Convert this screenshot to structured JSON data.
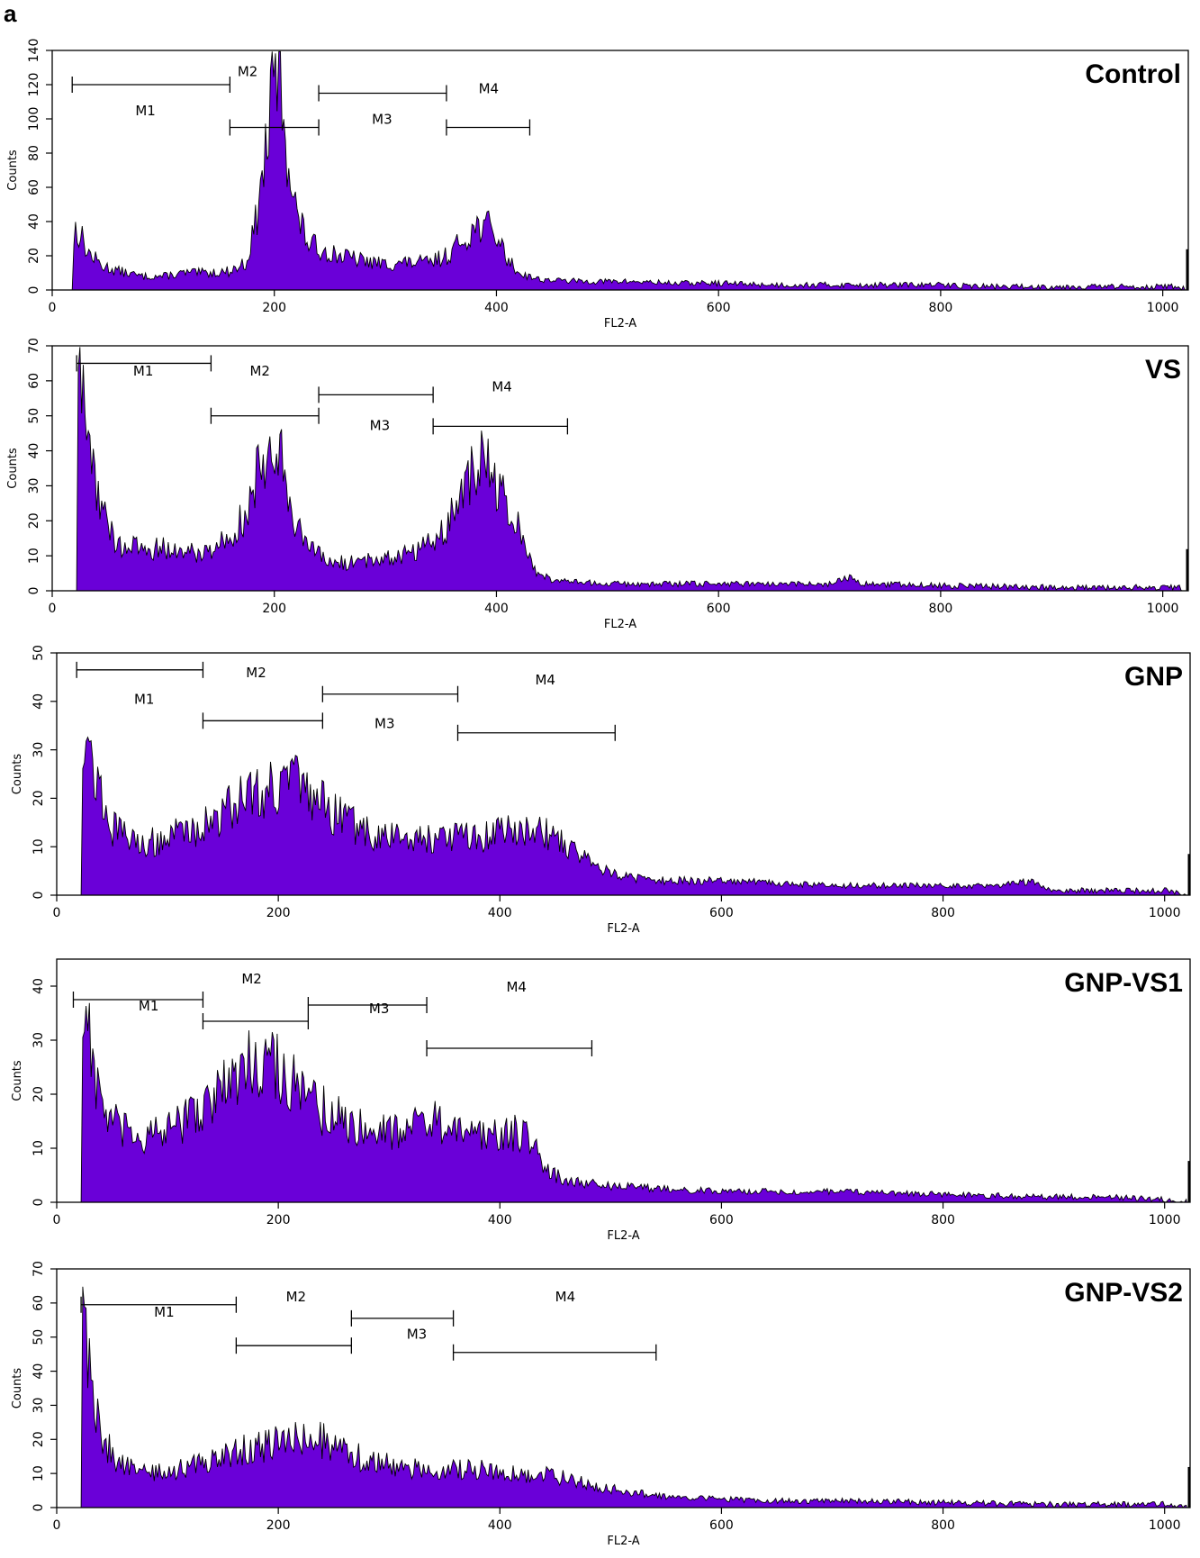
{
  "figure": {
    "panel_label": "a",
    "fill_color": "#6a00d8",
    "stroke_color": "#000000"
  },
  "chart_data": [
    {
      "type": "area",
      "title": "Control",
      "xlabel": "FL2-A",
      "ylabel": "Counts",
      "xlim": [
        0,
        1023
      ],
      "ylim": [
        0,
        140
      ],
      "xticks": [
        0,
        200,
        400,
        600,
        800,
        1000
      ],
      "yticks": [
        0,
        20,
        40,
        60,
        80,
        100,
        120,
        140
      ],
      "markers": [
        {
          "name": "M1",
          "start": 18,
          "end": 160,
          "level": 120,
          "label_x": 84,
          "label_y": 102
        },
        {
          "name": "M2",
          "start": 160,
          "end": 240,
          "level": 95,
          "label_x": 176,
          "label_y": 125
        },
        {
          "name": "M3",
          "start": 240,
          "end": 355,
          "level": 115,
          "label_x": 297,
          "label_y": 97
        },
        {
          "name": "M4",
          "start": 355,
          "end": 430,
          "level": 95,
          "label_x": 393,
          "label_y": 115
        }
      ],
      "profile": [
        [
          18,
          0
        ],
        [
          20,
          36
        ],
        [
          25,
          33
        ],
        [
          32,
          22
        ],
        [
          45,
          14
        ],
        [
          60,
          11
        ],
        [
          80,
          8
        ],
        [
          100,
          8
        ],
        [
          120,
          10
        ],
        [
          140,
          10
        ],
        [
          160,
          11
        ],
        [
          175,
          16
        ],
        [
          185,
          45
        ],
        [
          195,
          95
        ],
        [
          200,
          122
        ],
        [
          203,
          132
        ],
        [
          206,
          118
        ],
        [
          212,
          80
        ],
        [
          220,
          45
        ],
        [
          230,
          28
        ],
        [
          240,
          24
        ],
        [
          260,
          20
        ],
        [
          280,
          17
        ],
        [
          300,
          15
        ],
        [
          320,
          16
        ],
        [
          340,
          16
        ],
        [
          355,
          20
        ],
        [
          365,
          26
        ],
        [
          375,
          33
        ],
        [
          385,
          38
        ],
        [
          392,
          37
        ],
        [
          400,
          32
        ],
        [
          410,
          18
        ],
        [
          420,
          10
        ],
        [
          440,
          6
        ],
        [
          480,
          5
        ],
        [
          520,
          5
        ],
        [
          560,
          4
        ],
        [
          600,
          4
        ],
        [
          650,
          3
        ],
        [
          700,
          3
        ],
        [
          750,
          3
        ],
        [
          800,
          3
        ],
        [
          850,
          2
        ],
        [
          900,
          2
        ],
        [
          950,
          2
        ],
        [
          1000,
          2
        ],
        [
          1015,
          2
        ],
        [
          1020,
          0
        ]
      ]
    },
    {
      "type": "area",
      "title": "VS",
      "xlabel": "FL2-A",
      "ylabel": "Counts",
      "xlim": [
        0,
        1023
      ],
      "ylim": [
        0,
        70
      ],
      "xticks": [
        0,
        200,
        400,
        600,
        800,
        1000
      ],
      "yticks": [
        0,
        10,
        20,
        30,
        40,
        50,
        60,
        70
      ],
      "markers": [
        {
          "name": "M1",
          "start": 22,
          "end": 143,
          "level": 65,
          "label_x": 82,
          "label_y": 61.5
        },
        {
          "name": "M2",
          "start": 143,
          "end": 240,
          "level": 50,
          "label_x": 187,
          "label_y": 61.5
        },
        {
          "name": "M3",
          "start": 240,
          "end": 343,
          "level": 56,
          "label_x": 295,
          "label_y": 46
        },
        {
          "name": "M4",
          "start": 343,
          "end": 464,
          "level": 47,
          "label_x": 405,
          "label_y": 57
        }
      ],
      "profile": [
        [
          22,
          0
        ],
        [
          23,
          56
        ],
        [
          27,
          58
        ],
        [
          32,
          45
        ],
        [
          40,
          30
        ],
        [
          50,
          18
        ],
        [
          60,
          13
        ],
        [
          80,
          12
        ],
        [
          100,
          12
        ],
        [
          120,
          11
        ],
        [
          140,
          11
        ],
        [
          160,
          16
        ],
        [
          175,
          22
        ],
        [
          185,
          33
        ],
        [
          195,
          43
        ],
        [
          200,
          46
        ],
        [
          205,
          40
        ],
        [
          215,
          24
        ],
        [
          230,
          12
        ],
        [
          250,
          8
        ],
        [
          270,
          8
        ],
        [
          290,
          9
        ],
        [
          310,
          10
        ],
        [
          330,
          12
        ],
        [
          350,
          16
        ],
        [
          365,
          24
        ],
        [
          375,
          32
        ],
        [
          385,
          36
        ],
        [
          392,
          35
        ],
        [
          400,
          30
        ],
        [
          410,
          24
        ],
        [
          425,
          14
        ],
        [
          435,
          6
        ],
        [
          450,
          3
        ],
        [
          500,
          2
        ],
        [
          600,
          2
        ],
        [
          700,
          2
        ],
        [
          715,
          4
        ],
        [
          730,
          2
        ],
        [
          800,
          1.5
        ],
        [
          900,
          1
        ],
        [
          1000,
          1
        ],
        [
          1015,
          1
        ],
        [
          1020,
          0
        ]
      ]
    },
    {
      "type": "area",
      "title": "GNP",
      "xlabel": "FL2-A",
      "ylabel": "Counts",
      "xlim": [
        0,
        1023
      ],
      "ylim": [
        0,
        50
      ],
      "xticks": [
        0,
        200,
        400,
        600,
        800,
        1000
      ],
      "yticks": [
        0,
        10,
        20,
        30,
        40,
        50
      ],
      "markers": [
        {
          "name": "M1",
          "start": 18,
          "end": 132,
          "level": 46.5,
          "label_x": 79,
          "label_y": 39.5
        },
        {
          "name": "M2",
          "start": 132,
          "end": 240,
          "level": 36,
          "label_x": 180,
          "label_y": 45
        },
        {
          "name": "M3",
          "start": 240,
          "end": 362,
          "level": 41.5,
          "label_x": 296,
          "label_y": 34.5
        },
        {
          "name": "M4",
          "start": 362,
          "end": 504,
          "level": 33.5,
          "label_x": 441,
          "label_y": 43.5
        }
      ],
      "profile": [
        [
          22,
          0
        ],
        [
          23,
          36
        ],
        [
          27,
          33
        ],
        [
          35,
          24
        ],
        [
          50,
          14
        ],
        [
          70,
          11
        ],
        [
          90,
          11
        ],
        [
          110,
          13
        ],
        [
          130,
          14
        ],
        [
          150,
          17
        ],
        [
          170,
          21
        ],
        [
          190,
          22
        ],
        [
          210,
          24
        ],
        [
          230,
          20
        ],
        [
          250,
          17
        ],
        [
          270,
          14
        ],
        [
          290,
          12
        ],
        [
          310,
          12
        ],
        [
          330,
          12
        ],
        [
          350,
          12
        ],
        [
          370,
          12
        ],
        [
          390,
          12
        ],
        [
          410,
          14
        ],
        [
          430,
          14
        ],
        [
          450,
          12
        ],
        [
          470,
          9
        ],
        [
          490,
          6
        ],
        [
          510,
          4
        ],
        [
          540,
          3
        ],
        [
          600,
          3
        ],
        [
          650,
          2.5
        ],
        [
          700,
          2
        ],
        [
          800,
          2
        ],
        [
          850,
          2
        ],
        [
          880,
          3
        ],
        [
          900,
          1
        ],
        [
          950,
          1
        ],
        [
          1000,
          1
        ],
        [
          1020,
          0
        ]
      ]
    },
    {
      "type": "area",
      "title": "GNP-VS1",
      "xlabel": "FL2-A",
      "ylabel": "Counts",
      "xlim": [
        0,
        1023
      ],
      "ylim": [
        0,
        45
      ],
      "xticks": [
        0,
        200,
        400,
        600,
        800,
        1000
      ],
      "yticks": [
        0,
        10,
        20,
        30,
        40
      ],
      "markers": [
        {
          "name": "M1",
          "start": 15,
          "end": 132,
          "level": 37.5,
          "label_x": 83,
          "label_y": 35.5
        },
        {
          "name": "M2",
          "start": 132,
          "end": 227,
          "level": 33.5,
          "label_x": 176,
          "label_y": 40.5
        },
        {
          "name": "M3",
          "start": 227,
          "end": 334,
          "level": 36.5,
          "label_x": 291,
          "label_y": 35
        },
        {
          "name": "M4",
          "start": 334,
          "end": 483,
          "level": 28.5,
          "label_x": 415,
          "label_y": 39
        }
      ],
      "profile": [
        [
          22,
          0
        ],
        [
          23,
          34
        ],
        [
          28,
          36
        ],
        [
          35,
          22
        ],
        [
          45,
          16
        ],
        [
          60,
          13
        ],
        [
          80,
          12
        ],
        [
          100,
          13
        ],
        [
          120,
          16
        ],
        [
          140,
          19
        ],
        [
          160,
          23
        ],
        [
          175,
          26
        ],
        [
          185,
          27
        ],
        [
          195,
          26
        ],
        [
          205,
          24
        ],
        [
          220,
          20
        ],
        [
          240,
          17
        ],
        [
          260,
          15
        ],
        [
          280,
          14
        ],
        [
          300,
          13
        ],
        [
          320,
          15
        ],
        [
          340,
          15
        ],
        [
          360,
          13
        ],
        [
          380,
          12
        ],
        [
          400,
          13
        ],
        [
          420,
          13
        ],
        [
          430,
          11
        ],
        [
          440,
          6
        ],
        [
          460,
          4
        ],
        [
          500,
          3
        ],
        [
          550,
          2.5
        ],
        [
          600,
          2
        ],
        [
          650,
          2
        ],
        [
          700,
          2
        ],
        [
          800,
          1.5
        ],
        [
          900,
          1
        ],
        [
          950,
          1
        ],
        [
          1000,
          0.5
        ],
        [
          1020,
          0
        ]
      ]
    },
    {
      "type": "area",
      "title": "GNP-VS2",
      "xlabel": "FL2-A",
      "ylabel": "Counts",
      "xlim": [
        0,
        1023
      ],
      "ylim": [
        0,
        70
      ],
      "xticks": [
        0,
        200,
        400,
        600,
        800,
        1000
      ],
      "yticks": [
        0,
        10,
        20,
        30,
        40,
        50,
        60,
        70
      ],
      "markers": [
        {
          "name": "M1",
          "start": 22,
          "end": 162,
          "level": 59.5,
          "label_x": 97,
          "label_y": 56
        },
        {
          "name": "M2",
          "start": 162,
          "end": 266,
          "level": 47.5,
          "label_x": 216,
          "label_y": 60.5
        },
        {
          "name": "M3",
          "start": 266,
          "end": 358,
          "level": 55.5,
          "label_x": 325,
          "label_y": 49.5
        },
        {
          "name": "M4",
          "start": 358,
          "end": 541,
          "level": 45.5,
          "label_x": 459,
          "label_y": 60.5
        }
      ],
      "profile": [
        [
          22,
          0
        ],
        [
          23,
          63
        ],
        [
          26,
          55
        ],
        [
          30,
          40
        ],
        [
          38,
          24
        ],
        [
          50,
          15
        ],
        [
          70,
          11
        ],
        [
          90,
          10
        ],
        [
          110,
          11
        ],
        [
          130,
          13
        ],
        [
          150,
          15
        ],
        [
          170,
          17
        ],
        [
          190,
          18
        ],
        [
          210,
          20
        ],
        [
          230,
          21
        ],
        [
          250,
          18
        ],
        [
          270,
          15
        ],
        [
          290,
          13
        ],
        [
          310,
          12
        ],
        [
          330,
          11
        ],
        [
          350,
          11
        ],
        [
          370,
          11
        ],
        [
          390,
          11
        ],
        [
          410,
          10
        ],
        [
          430,
          10
        ],
        [
          450,
          9
        ],
        [
          470,
          8
        ],
        [
          490,
          6
        ],
        [
          510,
          5
        ],
        [
          530,
          4
        ],
        [
          560,
          3
        ],
        [
          600,
          2.5
        ],
        [
          650,
          2
        ],
        [
          700,
          2
        ],
        [
          800,
          1.5
        ],
        [
          900,
          1
        ],
        [
          1000,
          1
        ],
        [
          1020,
          0
        ]
      ]
    }
  ]
}
